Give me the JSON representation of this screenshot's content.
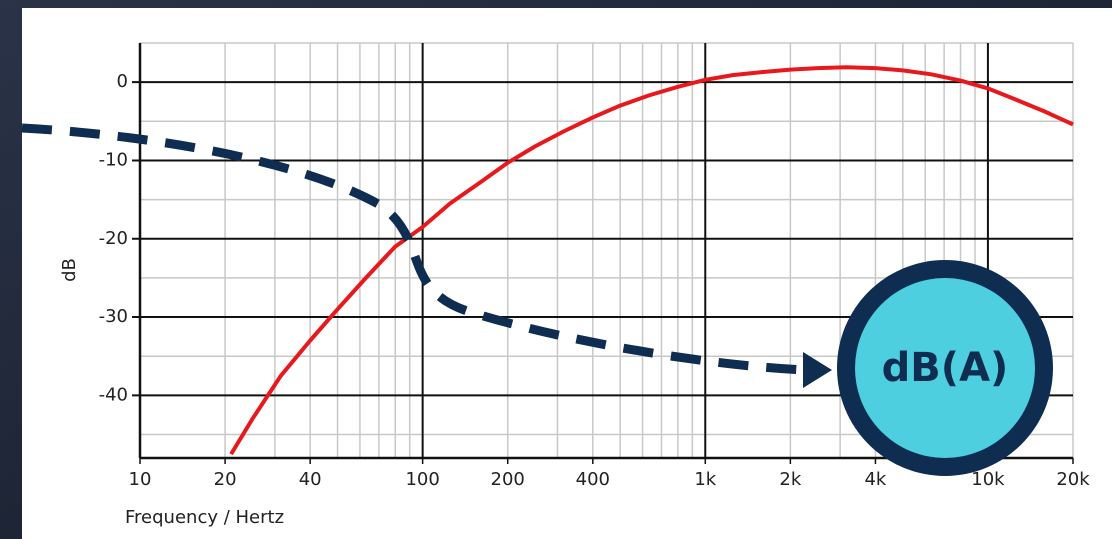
{
  "chart_data": {
    "type": "line",
    "xscale": "log",
    "xlabel": "Frequency / Hertz",
    "ylabel": "dB",
    "x": [
      21,
      25,
      31.5,
      40,
      50,
      63,
      80,
      100,
      125,
      160,
      200,
      250,
      315,
      400,
      500,
      630,
      800,
      1000,
      1250,
      1600,
      2000,
      2500,
      3150,
      4000,
      5000,
      6300,
      8000,
      10000,
      12500,
      16000,
      20000
    ],
    "values": [
      -47.5,
      -43,
      -37.5,
      -33,
      -29,
      -25,
      -21,
      -18.5,
      -15.5,
      -12.8,
      -10.3,
      -8.2,
      -6.3,
      -4.5,
      -3,
      -1.7,
      -0.6,
      0.3,
      0.9,
      1.3,
      1.6,
      1.8,
      1.9,
      1.8,
      1.5,
      1,
      0.2,
      -0.8,
      -2.2,
      -3.8,
      -5.4
    ],
    "color": "#e8191c",
    "xlim": [
      10,
      20000
    ],
    "ylim": [
      -48,
      5
    ],
    "xticks": [
      10,
      20,
      40,
      100,
      200,
      400,
      {
        "value": 1000,
        "label": "1k"
      },
      {
        "value": 2000,
        "label": "2k"
      },
      {
        "value": 4000,
        "label": "4k"
      },
      {
        "value": 10000,
        "label": "10k"
      },
      {
        "value": 20000,
        "label": "20k"
      }
    ],
    "yticks": [
      0,
      -10,
      -20,
      -30,
      -40
    ],
    "xgrid_major": [
      100,
      1000,
      10000
    ],
    "xgrid_minor": [
      20,
      30,
      40,
      50,
      60,
      70,
      80,
      90,
      200,
      300,
      400,
      500,
      600,
      700,
      800,
      900,
      2000,
      3000,
      4000,
      5000,
      6000,
      7000,
      8000,
      9000,
      20000
    ],
    "ygrid_minor": [
      5,
      -5,
      -15,
      -25,
      -35,
      -45
    ],
    "annotation": "dB(A)"
  }
}
